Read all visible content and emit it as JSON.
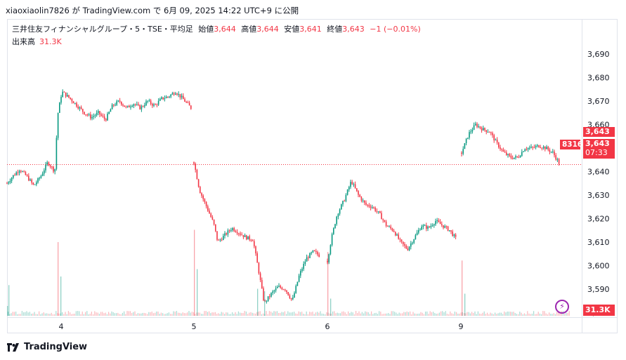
{
  "header": {
    "text": "xiaoxiaolin7826 が TradingView.com で 6月 09, 2025 14:22 UTC+9 に公開"
  },
  "legend": {
    "symbol": "三井住友フィナンシャルグループ・5・TSE・平均足",
    "open_label": "始値",
    "open": "3,644",
    "high_label": "高値",
    "high": "3,644",
    "low_label": "安値",
    "low": "3,641",
    "close_label": "終値",
    "close": "3,643",
    "change": "−1 (−0.01%)",
    "volume_label": "出来高",
    "volume": "31.3K"
  },
  "badges": {
    "price": "3,643",
    "price2": "3,643",
    "countdown": "07:33",
    "left_tag": "8316",
    "volume": "31.3K"
  },
  "footer": {
    "brand": "TradingView"
  },
  "colors": {
    "up": "#089981",
    "down": "#f23645",
    "line": "#f23645"
  },
  "chart_data": {
    "type": "candlestick",
    "y_ticks": [
      "3,580",
      "3,590",
      "3,600",
      "3,610",
      "3,620",
      "3,630",
      "3,640",
      "3,650",
      "3,660",
      "3,670",
      "3,680",
      "3,690"
    ],
    "ylim": [
      3574,
      3694
    ],
    "x_ticks": [
      "4",
      "5",
      "6",
      "9"
    ],
    "last_price": 3643,
    "grid": false,
    "sessions": [
      {
        "label": "4",
        "anchors": [
          [
            0,
            3635
          ],
          [
            8,
            3638
          ],
          [
            18,
            3641
          ],
          [
            28,
            3638
          ],
          [
            38,
            3634
          ],
          [
            48,
            3638
          ],
          [
            58,
            3644
          ],
          [
            68,
            3640
          ],
          [
            72,
            3664
          ],
          [
            78,
            3674
          ],
          [
            90,
            3671
          ],
          [
            100,
            3668
          ],
          [
            110,
            3665
          ],
          [
            120,
            3663
          ],
          [
            130,
            3665
          ],
          [
            140,
            3662
          ],
          [
            150,
            3668
          ],
          [
            160,
            3670
          ],
          [
            170,
            3667
          ],
          [
            180,
            3669
          ],
          [
            190,
            3667
          ],
          [
            200,
            3670
          ],
          [
            210,
            3668
          ],
          [
            220,
            3671
          ],
          [
            230,
            3672
          ],
          [
            240,
            3674
          ],
          [
            250,
            3671
          ],
          [
            262,
            3667
          ]
        ]
      },
      {
        "label": "5",
        "anchors": [
          [
            0,
            3644
          ],
          [
            8,
            3632
          ],
          [
            18,
            3625
          ],
          [
            28,
            3618
          ],
          [
            34,
            3610
          ],
          [
            44,
            3613
          ],
          [
            54,
            3616
          ],
          [
            64,
            3614
          ],
          [
            74,
            3612
          ],
          [
            84,
            3611
          ],
          [
            92,
            3598
          ],
          [
            100,
            3584
          ],
          [
            110,
            3588
          ],
          [
            120,
            3591
          ],
          [
            130,
            3590
          ],
          [
            140,
            3585
          ],
          [
            150,
            3596
          ],
          [
            160,
            3603
          ],
          [
            170,
            3606
          ],
          [
            180,
            3604
          ]
        ]
      },
      {
        "label": "6",
        "anchors": [
          [
            0,
            3602
          ],
          [
            6,
            3612
          ],
          [
            14,
            3622
          ],
          [
            24,
            3628
          ],
          [
            34,
            3636
          ],
          [
            44,
            3630
          ],
          [
            54,
            3626
          ],
          [
            64,
            3625
          ],
          [
            74,
            3622
          ],
          [
            84,
            3617
          ],
          [
            94,
            3615
          ],
          [
            104,
            3610
          ],
          [
            114,
            3607
          ],
          [
            124,
            3612
          ],
          [
            134,
            3617
          ],
          [
            144,
            3616
          ],
          [
            154,
            3619
          ],
          [
            164,
            3617
          ],
          [
            174,
            3615
          ],
          [
            184,
            3611
          ]
        ]
      },
      {
        "label": "9",
        "anchors": [
          [
            0,
            3648
          ],
          [
            10,
            3656
          ],
          [
            20,
            3660
          ],
          [
            30,
            3658
          ],
          [
            40,
            3657
          ],
          [
            50,
            3652
          ],
          [
            60,
            3648
          ],
          [
            70,
            3646
          ],
          [
            80,
            3646
          ],
          [
            90,
            3650
          ],
          [
            100,
            3650
          ],
          [
            110,
            3651
          ],
          [
            120,
            3650
          ],
          [
            130,
            3648
          ],
          [
            140,
            3643
          ]
        ]
      }
    ],
    "volume_spikes": [
      {
        "session": "4",
        "at": 0,
        "value": 8
      },
      {
        "session": "4",
        "at": 72,
        "value": 60
      },
      {
        "session": "4",
        "at": 76,
        "value": 32
      },
      {
        "session": "4",
        "at": 2,
        "value": 25
      },
      {
        "session": "5",
        "at": 0,
        "value": 70
      },
      {
        "session": "5",
        "at": 4,
        "value": 38
      },
      {
        "session": "5",
        "at": 90,
        "value": 22
      },
      {
        "session": "5",
        "at": 100,
        "value": 20
      },
      {
        "session": "6",
        "at": 0,
        "value": 52
      },
      {
        "session": "6",
        "at": 4,
        "value": 14
      },
      {
        "session": "9",
        "at": 0,
        "value": 45
      },
      {
        "session": "9",
        "at": 4,
        "value": 18
      }
    ]
  }
}
